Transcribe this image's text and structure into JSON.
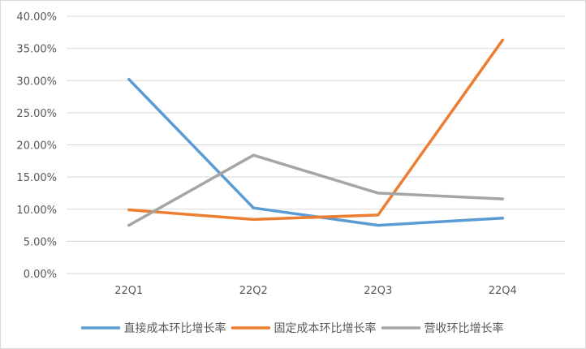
{
  "chart_data": {
    "type": "line",
    "categories": [
      "22Q1",
      "22Q2",
      "22Q3",
      "22Q4"
    ],
    "series": [
      {
        "name": "直接成本环比增长率",
        "color": "#5B9BD5",
        "values": [
          30.2,
          10.2,
          7.5,
          8.6
        ]
      },
      {
        "name": "固定成本环比增长率",
        "color": "#ED7D31",
        "values": [
          9.9,
          8.4,
          9.1,
          36.3
        ]
      },
      {
        "name": "营收环比增长率",
        "color": "#A5A5A5",
        "values": [
          7.5,
          18.4,
          12.5,
          11.6
        ]
      }
    ],
    "y_ticks": [
      "0.00%",
      "5.00%",
      "10.00%",
      "15.00%",
      "20.00%",
      "25.00%",
      "30.00%",
      "35.00%",
      "40.00%"
    ],
    "ylim": [
      0,
      40
    ],
    "y_unit": "%",
    "grid": true,
    "gridline_color": "#d9d9d9",
    "legend_position": "bottom"
  }
}
